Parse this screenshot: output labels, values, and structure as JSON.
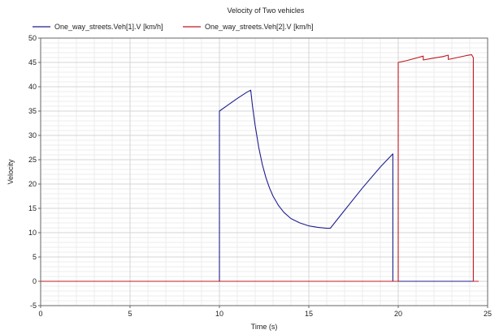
{
  "chart_data": {
    "type": "line",
    "title": "Velocity of Two vehicles",
    "xlabel": "Time (s)",
    "ylabel": "Velocity",
    "xlim": [
      0,
      25
    ],
    "ylim": [
      -5,
      50
    ],
    "xticks": [
      0,
      5,
      10,
      15,
      20,
      25
    ],
    "yticks": [
      -5,
      0,
      5,
      10,
      15,
      20,
      25,
      30,
      35,
      40,
      45,
      50
    ],
    "grid": true,
    "legend_position": "top",
    "series": [
      {
        "name": "One_way_streets.Veh[1].V [km/h]",
        "color": "#1f1f8f",
        "points": [
          [
            0,
            0
          ],
          [
            10.0,
            0
          ],
          [
            10.0,
            35.0
          ],
          [
            10.5,
            36.3
          ],
          [
            11.0,
            37.6
          ],
          [
            11.5,
            38.8
          ],
          [
            11.75,
            39.3
          ],
          [
            11.85,
            36.0
          ],
          [
            12.0,
            32.0
          ],
          [
            12.2,
            27.5
          ],
          [
            12.4,
            24.0
          ],
          [
            12.6,
            21.3
          ],
          [
            12.8,
            19.2
          ],
          [
            13.0,
            17.5
          ],
          [
            13.3,
            15.6
          ],
          [
            13.6,
            14.2
          ],
          [
            14.0,
            12.9
          ],
          [
            14.5,
            12.0
          ],
          [
            15.0,
            11.4
          ],
          [
            15.5,
            11.1
          ],
          [
            16.0,
            10.9
          ],
          [
            16.2,
            10.9
          ],
          [
            17.0,
            14.6
          ],
          [
            18.0,
            19.2
          ],
          [
            19.0,
            23.5
          ],
          [
            19.7,
            26.2
          ],
          [
            19.7,
            0
          ],
          [
            24.5,
            0
          ]
        ]
      },
      {
        "name": "One_way_streets.Veh[2].V [km/h]",
        "color": "#c0181f",
        "points": [
          [
            0,
            0
          ],
          [
            20.0,
            0
          ],
          [
            20.0,
            45.0
          ],
          [
            20.5,
            45.4
          ],
          [
            21.0,
            45.9
          ],
          [
            21.4,
            46.3
          ],
          [
            21.4,
            45.5
          ],
          [
            22.0,
            45.9
          ],
          [
            22.5,
            46.2
          ],
          [
            22.8,
            46.5
          ],
          [
            22.8,
            45.6
          ],
          [
            23.3,
            46.0
          ],
          [
            23.8,
            46.4
          ],
          [
            24.1,
            46.6
          ],
          [
            24.2,
            46.0
          ],
          [
            24.2,
            0
          ],
          [
            24.5,
            0
          ]
        ]
      }
    ]
  }
}
